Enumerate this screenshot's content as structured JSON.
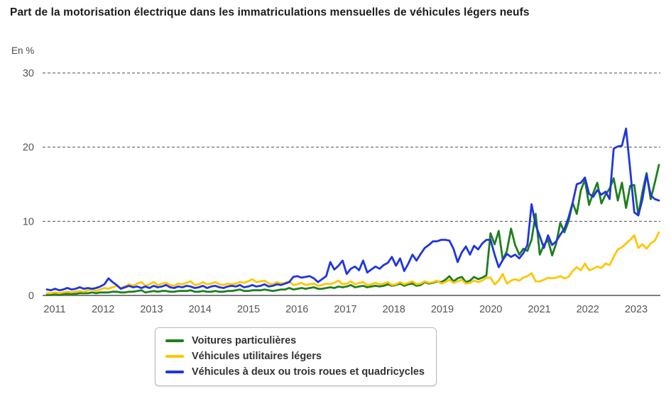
{
  "header": {
    "title": "Part de la motorisation électrique dans les immatriculations mensuelles de véhicules légers neufs",
    "unit_label": "En %"
  },
  "chart_data": {
    "type": "line",
    "title": "Part de la motorisation électrique dans les immatriculations mensuelles de véhicules légers neufs",
    "xlabel": "",
    "ylabel": "En %",
    "ylim": [
      0,
      30
    ],
    "yticks": [
      0,
      10,
      20,
      30
    ],
    "grid": "horizontal dashed gridlines at 10, 20, 30",
    "legend_position": "bottom",
    "x_frequency": "monthly",
    "x_start": "2011-01",
    "x_end": "2023-06",
    "x_tick_labels": [
      "2011",
      "2012",
      "2013",
      "2014",
      "2015",
      "2016",
      "2017",
      "2018",
      "2019",
      "2020",
      "2021",
      "2022",
      "2023"
    ],
    "series": [
      {
        "name": "Voitures particulières",
        "color": "#1e7e1e",
        "values": [
          0.1,
          0.1,
          0.2,
          0.1,
          0.2,
          0.2,
          0.2,
          0.2,
          0.3,
          0.3,
          0.3,
          0.4,
          0.3,
          0.4,
          0.4,
          0.4,
          0.5,
          0.5,
          0.4,
          0.4,
          0.5,
          0.5,
          0.6,
          0.7,
          0.4,
          0.5,
          0.6,
          0.5,
          0.6,
          0.6,
          0.5,
          0.5,
          0.6,
          0.6,
          0.6,
          0.7,
          0.5,
          0.5,
          0.6,
          0.5,
          0.5,
          0.6,
          0.5,
          0.5,
          0.6,
          0.6,
          0.7,
          0.8,
          0.6,
          0.6,
          0.7,
          0.7,
          0.7,
          0.8,
          0.7,
          0.6,
          0.7,
          0.8,
          0.8,
          1.0,
          0.8,
          0.9,
          1.0,
          0.9,
          1.0,
          1.1,
          0.9,
          0.9,
          1.0,
          1.1,
          1.0,
          1.2,
          1.1,
          1.2,
          1.4,
          1.1,
          1.2,
          1.3,
          1.1,
          1.2,
          1.3,
          1.2,
          1.3,
          1.5,
          1.3,
          1.4,
          1.6,
          1.3,
          1.5,
          1.6,
          1.3,
          1.4,
          1.8,
          1.6,
          1.7,
          1.9,
          1.8,
          2.1,
          2.6,
          1.9,
          2.3,
          2.5,
          1.8,
          2.0,
          2.5,
          2.2,
          2.4,
          2.7,
          8.4,
          6.9,
          8.7,
          4.8,
          6.0,
          9.0,
          6.8,
          5.5,
          6.3,
          6.0,
          7.5,
          11.0,
          5.5,
          6.8,
          7.5,
          5.4,
          7.0,
          9.8,
          8.5,
          10.0,
          12.5,
          11.0,
          14.2,
          15.6,
          12.2,
          13.8,
          15.2,
          12.4,
          13.6,
          14.4,
          15.8,
          12.8,
          15.2,
          11.8,
          14.8,
          14.9,
          10.8,
          14.0,
          16.5,
          13.0,
          15.2,
          17.6
        ]
      },
      {
        "name": "Véhicules utilitaires légers",
        "color": "#ffc603",
        "values": [
          0.3,
          0.3,
          0.4,
          0.3,
          0.4,
          0.5,
          0.4,
          0.5,
          0.6,
          0.5,
          0.7,
          0.8,
          0.6,
          0.8,
          1.0,
          0.9,
          1.1,
          1.3,
          1.0,
          1.2,
          1.5,
          1.3,
          1.6,
          1.8,
          1.3,
          1.5,
          1.8,
          1.4,
          1.6,
          1.7,
          1.4,
          1.3,
          1.6,
          1.5,
          1.7,
          1.9,
          1.4,
          1.5,
          1.8,
          1.5,
          1.6,
          1.8,
          1.5,
          1.4,
          1.6,
          1.5,
          1.6,
          1.8,
          1.7,
          1.9,
          2.2,
          1.8,
          1.9,
          2.0,
          1.6,
          1.5,
          1.8,
          1.6,
          1.7,
          1.9,
          1.4,
          1.5,
          1.7,
          1.4,
          1.5,
          1.6,
          1.3,
          1.4,
          1.6,
          1.5,
          1.7,
          2.0,
          1.5,
          1.6,
          1.9,
          1.5,
          1.7,
          1.8,
          1.4,
          1.5,
          1.7,
          1.5,
          1.6,
          1.8,
          1.4,
          1.5,
          1.8,
          1.5,
          1.7,
          1.9,
          1.5,
          1.6,
          1.9,
          1.7,
          1.8,
          2.0,
          1.6,
          1.8,
          2.1,
          1.7,
          1.9,
          2.1,
          1.6,
          1.7,
          2.0,
          1.8,
          2.0,
          2.4,
          2.4,
          1.5,
          2.0,
          2.9,
          1.6,
          2.0,
          2.2,
          2.0,
          2.4,
          2.6,
          3.0,
          1.9,
          1.9,
          2.1,
          2.4,
          2.3,
          2.4,
          2.6,
          2.3,
          2.5,
          3.3,
          3.8,
          3.4,
          4.3,
          3.4,
          3.6,
          3.9,
          3.7,
          4.3,
          4.1,
          5.2,
          6.2,
          6.5,
          7.0,
          7.5,
          8.1,
          6.4,
          6.9,
          6.3,
          7.0,
          7.4,
          8.5
        ]
      },
      {
        "name": "Véhicules à deux ou trois roues et quadricycles",
        "color": "#1f35df",
        "values": [
          0.8,
          0.7,
          0.9,
          0.7,
          0.8,
          1.0,
          0.8,
          0.9,
          1.1,
          0.9,
          1.0,
          0.9,
          1.0,
          1.2,
          1.5,
          2.3,
          1.8,
          1.4,
          0.9,
          1.1,
          1.3,
          1.1,
          1.2,
          1.0,
          1.2,
          1.0,
          1.3,
          1.1,
          1.2,
          1.4,
          1.1,
          1.0,
          1.2,
          1.1,
          1.3,
          1.2,
          1.0,
          1.1,
          1.3,
          1.0,
          1.2,
          1.3,
          1.1,
          1.0,
          1.2,
          1.3,
          1.2,
          1.4,
          1.1,
          1.2,
          1.4,
          1.2,
          1.3,
          1.5,
          1.2,
          1.3,
          1.5,
          1.4,
          1.6,
          1.8,
          2.5,
          2.6,
          2.4,
          2.5,
          2.6,
          2.3,
          1.8,
          2.2,
          2.6,
          4.5,
          3.5,
          4.0,
          4.7,
          2.9,
          3.6,
          3.9,
          3.4,
          4.7,
          3.1,
          3.5,
          3.9,
          3.6,
          4.1,
          4.4,
          5.2,
          4.0,
          5.0,
          3.3,
          4.3,
          5.5,
          4.7,
          5.6,
          6.4,
          6.8,
          7.3,
          7.3,
          7.5,
          7.5,
          7.4,
          6.3,
          4.5,
          5.8,
          6.6,
          5.5,
          6.7,
          6.2,
          7.0,
          7.5,
          7.5,
          5.5,
          3.8,
          4.8,
          5.6,
          5.2,
          5.5,
          5.0,
          5.7,
          6.8,
          12.3,
          9.5,
          8.0,
          6.4,
          8.1,
          6.8,
          7.3,
          8.2,
          9.0,
          10.5,
          12.5,
          15.0,
          15.2,
          15.9,
          13.7,
          13.3,
          14.2,
          13.6,
          14.0,
          13.0,
          19.8,
          20.1,
          20.2,
          22.5,
          17.0,
          11.2,
          10.8,
          13.0,
          16.3,
          13.5,
          13.0,
          12.8
        ]
      }
    ]
  }
}
